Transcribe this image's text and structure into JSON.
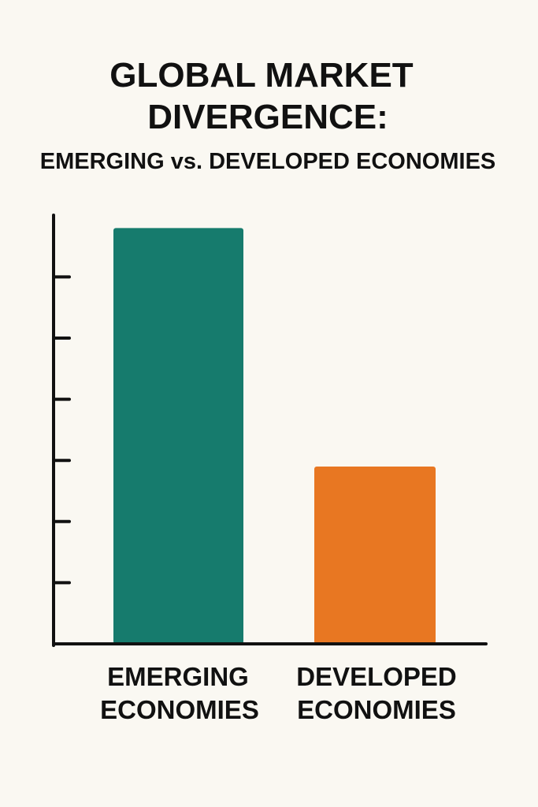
{
  "chart_data": {
    "type": "bar",
    "title": "GLOBAL MARKET DIVERGENCE:",
    "title_lines": [
      "GLOBAL MARKET",
      "DIVERGENCE:"
    ],
    "subtitle": "EMERGING vs. DEVELOPED ECONOMIES",
    "categories": [
      "EMERGING ECONOMIES",
      "DEVELOPED ECONOMIES"
    ],
    "category_lines": [
      [
        "EMERGING",
        "ECONOMIES"
      ],
      [
        "DEVELOPED",
        "ECONOMIES"
      ]
    ],
    "values": [
      6.8,
      2.9
    ],
    "colors": [
      "#167B6D",
      "#E87722"
    ],
    "xlabel": "",
    "ylabel": "",
    "ylim": [
      0,
      7
    ],
    "yticks": [
      1,
      2,
      3,
      4,
      5,
      6
    ],
    "ytick_labels_shown": false,
    "grid": false,
    "legend": "none"
  }
}
